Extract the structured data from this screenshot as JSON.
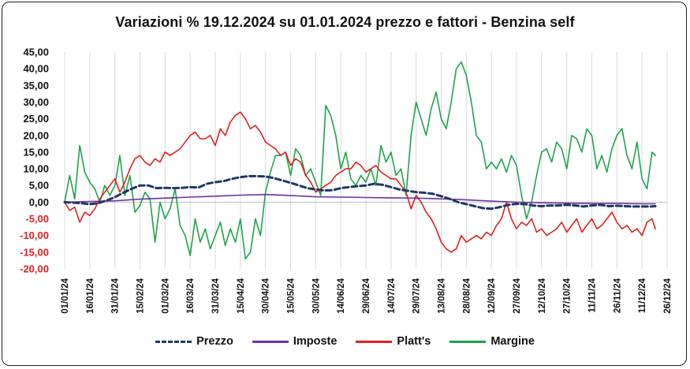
{
  "chart_data": {
    "type": "line",
    "title": "Variazioni % 19.12.2024 su 01.01.2024 prezzo e fattori - Benzina self",
    "xlabel": "",
    "ylabel": "",
    "ylim": [
      -20,
      45
    ],
    "y_ticks": [
      "45,00",
      "40,00",
      "35,00",
      "30,00",
      "25,00",
      "20,00",
      "15,00",
      "10,00",
      "5,00",
      "0,00",
      "-5,00",
      "-10,00",
      "-15,00",
      "-20,00"
    ],
    "x_ticks": [
      "01/01/24",
      "16/01/24",
      "31/01/24",
      "15/02/24",
      "01/03/24",
      "16/03/24",
      "31/03/24",
      "15/04/24",
      "30/04/24",
      "15/05/24",
      "30/05/24",
      "14/06/24",
      "29/06/24",
      "14/07/24",
      "29/07/24",
      "13/08/24",
      "28/08/24",
      "12/09/24",
      "27/09/24",
      "12/10/24",
      "27/10/24",
      "11/11/24",
      "26/11/24",
      "11/12/24",
      "26/12/24"
    ],
    "x_range_days": [
      0,
      360
    ],
    "grid": "vertical",
    "legend_position": "bottom",
    "series": [
      {
        "name": "Prezzo",
        "color": "#1f3864",
        "dash": true,
        "x": [
          0,
          10,
          15,
          20,
          25,
          30,
          35,
          40,
          45,
          50,
          55,
          60,
          65,
          70,
          75,
          80,
          85,
          90,
          95,
          100,
          105,
          110,
          115,
          120,
          125,
          130,
          135,
          140,
          145,
          150,
          155,
          160,
          165,
          170,
          175,
          180,
          185,
          190,
          195,
          200,
          205,
          210,
          215,
          220,
          225,
          230,
          235,
          240,
          245,
          250,
          255,
          260,
          265,
          270,
          275,
          280,
          285,
          290,
          295,
          300,
          305,
          310,
          315,
          320,
          325,
          330,
          335,
          340,
          345,
          350,
          353
        ],
        "values": [
          0,
          -0.3,
          -0.6,
          -0.3,
          0.5,
          1.5,
          2.8,
          4,
          5,
          5,
          4.2,
          4.3,
          4.2,
          4.3,
          4.5,
          4.4,
          5.5,
          6,
          6.3,
          7,
          7.5,
          7.8,
          7.8,
          7.7,
          7.2,
          6.5,
          5.8,
          5,
          4.2,
          3.8,
          3.5,
          3.6,
          4.2,
          4.5,
          4.8,
          5,
          5.5,
          5.2,
          4.5,
          3.8,
          3.4,
          3,
          2.8,
          2.5,
          1.8,
          1,
          0,
          -0.6,
          -1.2,
          -1.8,
          -2,
          -1.5,
          -0.8,
          -0.5,
          -0.6,
          -1,
          -1.2,
          -1,
          -1,
          -0.8,
          -1,
          -1.3,
          -1,
          -0.8,
          -1.2,
          -1.1,
          -1.2,
          -1.3,
          -1.3,
          -1.3,
          -1.2
        ]
      },
      {
        "name": "Imposte",
        "color": "#7030a0",
        "dash": false,
        "x": [
          0,
          15,
          30,
          45,
          60,
          75,
          90,
          105,
          120,
          135,
          150,
          165,
          180,
          195,
          210,
          225,
          240,
          255,
          270,
          285,
          300,
          315,
          330,
          345,
          353
        ],
        "values": [
          0,
          0.2,
          0.4,
          0.9,
          1.2,
          1.5,
          1.8,
          2.1,
          2.3,
          2,
          1.6,
          1.5,
          1.4,
          1.3,
          1.2,
          1,
          0.7,
          0.3,
          0,
          -0.2,
          -0.3,
          -0.4,
          -0.4,
          -0.5,
          -0.5
        ]
      },
      {
        "name": "Platt's",
        "color": "#e02020",
        "dash": false,
        "x": [
          0,
          3,
          6,
          9,
          12,
          15,
          18,
          21,
          24,
          27,
          30,
          33,
          36,
          39,
          42,
          45,
          48,
          51,
          54,
          57,
          60,
          63,
          66,
          69,
          72,
          75,
          78,
          81,
          84,
          87,
          90,
          93,
          96,
          99,
          102,
          105,
          108,
          111,
          114,
          117,
          120,
          123,
          126,
          129,
          132,
          135,
          138,
          141,
          144,
          147,
          150,
          153,
          156,
          159,
          162,
          165,
          168,
          171,
          174,
          177,
          180,
          183,
          186,
          189,
          192,
          195,
          198,
          201,
          204,
          207,
          210,
          213,
          216,
          219,
          222,
          225,
          228,
          231,
          234,
          237,
          240,
          243,
          246,
          249,
          252,
          255,
          258,
          261,
          264,
          267,
          270,
          273,
          276,
          279,
          282,
          285,
          288,
          291,
          294,
          297,
          300,
          303,
          306,
          309,
          312,
          315,
          318,
          321,
          324,
          327,
          330,
          333,
          336,
          339,
          342,
          345,
          348,
          351,
          353
        ],
        "values": [
          0,
          -2.5,
          -1.5,
          -6,
          -3,
          -4,
          -2,
          1,
          3,
          5,
          7,
          3,
          6,
          10,
          13,
          14,
          12,
          11,
          13,
          12,
          15,
          14,
          15,
          16,
          18,
          20,
          21,
          19,
          19,
          20,
          17,
          22,
          20,
          24,
          26,
          27,
          25,
          22,
          23,
          21,
          18,
          17,
          16,
          14,
          15,
          11,
          13,
          12,
          8,
          6,
          3,
          4,
          5,
          6,
          8,
          9,
          10,
          10,
          12,
          11,
          9,
          10,
          11,
          9,
          8,
          7,
          7,
          5,
          3,
          -2,
          2,
          0,
          -3,
          -5,
          -8,
          -12,
          -14,
          -15,
          -14,
          -10,
          -12,
          -11,
          -10,
          -11,
          -9,
          -10,
          -7,
          -5,
          0,
          -5,
          -8,
          -6,
          -7,
          -5,
          -9,
          -8,
          -10,
          -9,
          -8,
          -6,
          -9,
          -7,
          -5,
          -9,
          -7,
          -5,
          -8,
          -7,
          -5,
          -3,
          -6,
          -8,
          -7,
          -9,
          -8,
          -10,
          -6,
          -5,
          -8
        ]
      },
      {
        "name": "Margine",
        "color": "#1ea34a",
        "dash": false,
        "x": [
          0,
          3,
          6,
          9,
          12,
          15,
          18,
          21,
          24,
          27,
          30,
          33,
          36,
          39,
          42,
          45,
          48,
          51,
          54,
          57,
          60,
          63,
          66,
          69,
          72,
          75,
          78,
          81,
          84,
          87,
          90,
          93,
          96,
          99,
          102,
          105,
          108,
          111,
          114,
          117,
          120,
          123,
          126,
          129,
          132,
          135,
          138,
          141,
          144,
          147,
          150,
          153,
          156,
          159,
          162,
          165,
          168,
          171,
          174,
          177,
          180,
          183,
          186,
          189,
          192,
          195,
          198,
          201,
          204,
          207,
          210,
          213,
          216,
          219,
          222,
          225,
          228,
          231,
          234,
          237,
          240,
          243,
          246,
          249,
          252,
          255,
          258,
          261,
          264,
          267,
          270,
          273,
          276,
          279,
          282,
          285,
          288,
          291,
          294,
          297,
          300,
          303,
          306,
          309,
          312,
          315,
          318,
          321,
          324,
          327,
          330,
          333,
          336,
          339,
          342,
          345,
          348,
          351,
          353
        ],
        "values": [
          0,
          8,
          1,
          17,
          9,
          6,
          4,
          0,
          5,
          2,
          5,
          14,
          2,
          8,
          -3,
          -1,
          3,
          1,
          -12,
          0,
          -5,
          -2,
          4,
          -7,
          -10,
          -16,
          -5,
          -12,
          -8,
          -14,
          -10,
          -6,
          -13,
          -8,
          -12,
          -5,
          -17,
          -15,
          -5,
          -10,
          3,
          9,
          14,
          14,
          15,
          8,
          16,
          14,
          8,
          10,
          6,
          2,
          29,
          26,
          20,
          10,
          15,
          7,
          5,
          8,
          6,
          10,
          5,
          17,
          12,
          15,
          8,
          10,
          2,
          20,
          30,
          25,
          20,
          28,
          33,
          25,
          22,
          30,
          40,
          42,
          38,
          30,
          20,
          18,
          10,
          12,
          10,
          13,
          9,
          14,
          11,
          2,
          -5,
          0,
          8,
          15,
          16,
          12,
          18,
          16,
          10,
          20,
          19,
          15,
          22,
          20,
          10,
          14,
          9,
          16,
          20,
          22,
          14,
          10,
          18,
          7,
          4,
          15,
          14
        ]
      }
    ],
    "legend": [
      "Prezzo",
      "Imposte",
      "Platt's",
      "Margine"
    ]
  },
  "colors": {
    "negative_tick": "#e02020",
    "positive_tick": "#111111",
    "grid": "#d9d9d9",
    "zero_line": "#bfbfbf"
  }
}
